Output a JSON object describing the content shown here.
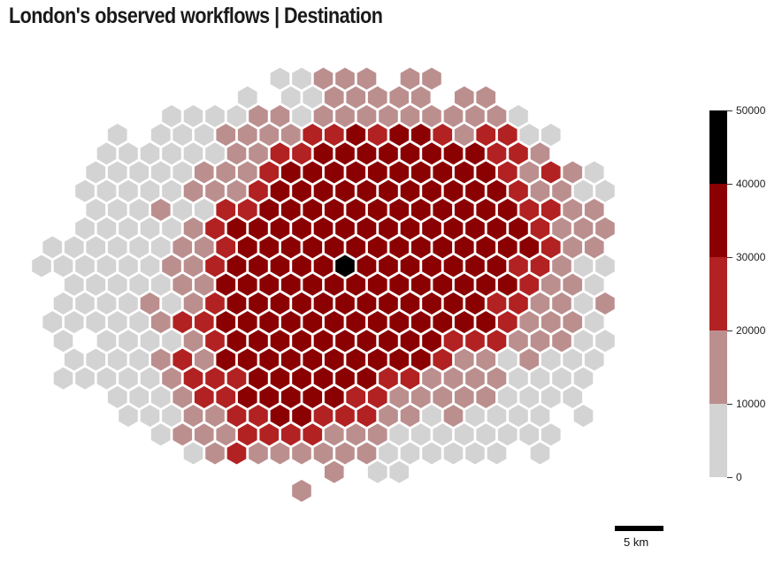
{
  "title": "London's observed workflows | Destination",
  "legend": {
    "ticks": [
      "50000",
      "40000",
      "30000",
      "20000",
      "10000",
      "0"
    ],
    "colors": [
      "#d3d3d3",
      "#bc8f8f",
      "#b22222",
      "#8b0000",
      "#000000"
    ]
  },
  "scale_bar": {
    "label": "5 km"
  }
}
